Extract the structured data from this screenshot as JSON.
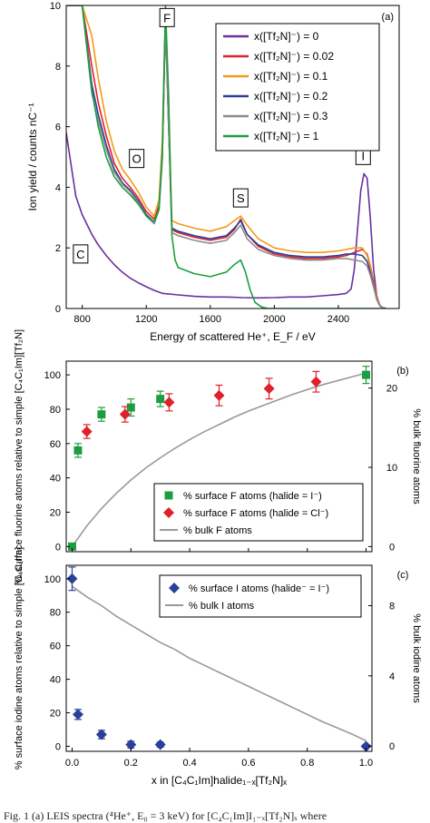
{
  "caption": "Fig. 1 (a) LEIS spectra (⁴He⁺, E₀ = 3 keV) for [C₄C₁Im]I₁₋ₓ[Tf₂N]ₓ where",
  "chart_data": [
    {
      "type": "line",
      "panel_label": "(a)",
      "xlabel": "Energy of scattered He⁺, E_F / eV",
      "ylabel": "Ion yield / counts nC⁻¹",
      "xlim": [
        700,
        2780
      ],
      "ylim": [
        0,
        10
      ],
      "xticks": [
        800,
        1200,
        1600,
        2000,
        2400
      ],
      "yticks": [
        0,
        2,
        4,
        6,
        8,
        10
      ],
      "legend_position": "top-right",
      "peak_labels": [
        {
          "text": "F",
          "x": 1330,
          "y": 9.6
        },
        {
          "text": "O",
          "x": 1140,
          "y": 4.95
        },
        {
          "text": "S",
          "x": 1790,
          "y": 3.65
        },
        {
          "text": "I",
          "x": 2555,
          "y": 5.05
        },
        {
          "text": "C",
          "x": 790,
          "y": 1.8
        }
      ],
      "series": [
        {
          "name": "x([Tf₂N]⁻) = 0",
          "color": "#6a2fa0",
          "x": [
            690,
            700,
            760,
            800,
            860,
            900,
            950,
            1000,
            1050,
            1100,
            1150,
            1200,
            1250,
            1300,
            1400,
            1500,
            1600,
            1700,
            1800,
            1900,
            2000,
            2100,
            2200,
            2300,
            2400,
            2450,
            2480,
            2500,
            2520,
            2540,
            2560,
            2580,
            2600,
            2620,
            2640,
            2660,
            2680,
            2700
          ],
          "y": [
            5.9,
            5.8,
            3.7,
            3.1,
            2.45,
            2.1,
            1.75,
            1.45,
            1.2,
            1.0,
            0.85,
            0.72,
            0.6,
            0.5,
            0.45,
            0.4,
            0.38,
            0.38,
            0.36,
            0.35,
            0.36,
            0.38,
            0.38,
            0.42,
            0.46,
            0.5,
            0.65,
            1.3,
            2.6,
            3.9,
            4.45,
            4.3,
            3.0,
            1.3,
            0.4,
            0.1,
            0.02,
            0.0
          ]
        },
        {
          "name": "x([Tf₂N]⁻) = 0.02",
          "color": "#e0202a",
          "x": [
            690,
            700,
            760,
            800,
            860,
            900,
            950,
            1000,
            1050,
            1100,
            1150,
            1200,
            1250,
            1280,
            1300,
            1320,
            1340,
            1360,
            1400,
            1500,
            1600,
            1700,
            1750,
            1790,
            1830,
            1900,
            2000,
            2100,
            2200,
            2300,
            2400,
            2450,
            2500,
            2550,
            2580,
            2600,
            2620,
            2640,
            2660,
            2680,
            2700
          ],
          "y": [
            10,
            10,
            10,
            10,
            8.0,
            6.8,
            5.7,
            4.8,
            4.3,
            4.0,
            3.65,
            3.2,
            2.95,
            3.4,
            5.0,
            9.5,
            6.0,
            2.6,
            2.5,
            2.35,
            2.25,
            2.35,
            2.6,
            2.95,
            2.45,
            2.05,
            1.8,
            1.7,
            1.65,
            1.65,
            1.7,
            1.75,
            1.85,
            1.95,
            1.8,
            1.4,
            0.9,
            0.4,
            0.1,
            0.02,
            0.0
          ]
        },
        {
          "name": "x([Tf₂N]⁻) = 0.1",
          "color": "#f29a1a",
          "x": [
            690,
            700,
            760,
            800,
            860,
            900,
            950,
            1000,
            1050,
            1100,
            1150,
            1200,
            1250,
            1280,
            1300,
            1320,
            1340,
            1360,
            1400,
            1500,
            1600,
            1700,
            1750,
            1790,
            1830,
            1900,
            2000,
            2100,
            2200,
            2300,
            2400,
            2450,
            2500,
            2550,
            2580,
            2600,
            2620,
            2640,
            2660,
            2680,
            2700
          ],
          "y": [
            10,
            10,
            10,
            10,
            9.0,
            7.6,
            6.2,
            5.2,
            4.6,
            4.25,
            3.85,
            3.35,
            3.05,
            3.6,
            5.5,
            9.8,
            6.5,
            2.9,
            2.8,
            2.65,
            2.55,
            2.7,
            2.9,
            3.05,
            2.75,
            2.3,
            2.0,
            1.9,
            1.85,
            1.85,
            1.9,
            1.95,
            2.0,
            2.0,
            1.75,
            1.35,
            0.85,
            0.35,
            0.1,
            0.02,
            0.0
          ]
        },
        {
          "name": "x([Tf₂N]⁻) = 0.2",
          "color": "#2a3f9a",
          "x": [
            690,
            700,
            760,
            800,
            860,
            900,
            950,
            1000,
            1050,
            1100,
            1150,
            1200,
            1250,
            1280,
            1300,
            1320,
            1340,
            1360,
            1400,
            1500,
            1600,
            1700,
            1750,
            1790,
            1830,
            1900,
            2000,
            2100,
            2200,
            2300,
            2400,
            2450,
            2500,
            2550,
            2580,
            2600,
            2620,
            2640,
            2660,
            2680,
            2700
          ],
          "y": [
            10,
            10,
            10,
            10,
            7.4,
            6.4,
            5.4,
            4.6,
            4.15,
            3.9,
            3.55,
            3.1,
            2.85,
            3.3,
            5.0,
            9.7,
            6.1,
            2.65,
            2.55,
            2.4,
            2.3,
            2.4,
            2.65,
            2.9,
            2.45,
            2.1,
            1.85,
            1.75,
            1.7,
            1.7,
            1.75,
            1.8,
            1.8,
            1.75,
            1.55,
            1.2,
            0.75,
            0.3,
            0.08,
            0.02,
            0.0
          ]
        },
        {
          "name": "x([Tf₂N]⁻) = 0.3",
          "color": "#8c8c8c",
          "x": [
            690,
            700,
            760,
            800,
            860,
            900,
            950,
            1000,
            1050,
            1100,
            1150,
            1200,
            1250,
            1280,
            1300,
            1320,
            1340,
            1360,
            1400,
            1500,
            1600,
            1700,
            1750,
            1790,
            1830,
            1900,
            2000,
            2100,
            2200,
            2300,
            2400,
            2450,
            2500,
            2550,
            2580,
            2600,
            2620,
            2640,
            2660,
            2680,
            2700
          ],
          "y": [
            10,
            10,
            10,
            10,
            7.1,
            6.2,
            5.25,
            4.5,
            4.1,
            3.85,
            3.5,
            3.05,
            2.8,
            3.25,
            4.9,
            9.7,
            6.0,
            2.5,
            2.4,
            2.25,
            2.15,
            2.25,
            2.5,
            2.75,
            2.3,
            1.95,
            1.75,
            1.65,
            1.6,
            1.6,
            1.65,
            1.65,
            1.6,
            1.55,
            1.4,
            1.1,
            0.7,
            0.3,
            0.08,
            0.02,
            0.0
          ]
        },
        {
          "name": "x([Tf₂N]⁻) = 1",
          "color": "#1c9e3e",
          "x": [
            690,
            700,
            760,
            800,
            860,
            900,
            950,
            1000,
            1050,
            1100,
            1150,
            1200,
            1250,
            1280,
            1300,
            1320,
            1340,
            1360,
            1380,
            1400,
            1500,
            1600,
            1700,
            1750,
            1790,
            1820,
            1850,
            1880,
            1920,
            1960,
            2000,
            2100,
            2200,
            2300,
            2400,
            2500,
            2600,
            2700
          ],
          "y": [
            10,
            10,
            10,
            10,
            7.2,
            6.0,
            5.0,
            4.35,
            4.0,
            3.75,
            3.45,
            3.05,
            2.85,
            3.3,
            5.2,
            10.0,
            7.0,
            2.4,
            1.6,
            1.35,
            1.15,
            1.05,
            1.2,
            1.45,
            1.6,
            1.2,
            0.6,
            0.2,
            0.05,
            0.0,
            0.0,
            0.0,
            0.0,
            0.0,
            0.0,
            0.0,
            0.0,
            0.0
          ]
        }
      ]
    },
    {
      "type": "scatter",
      "panel_label": "(b)",
      "xlim": [
        -0.02,
        1.02
      ],
      "ylim": [
        -3,
        108
      ],
      "y2lim": [
        -0.65,
        23.4
      ],
      "ylabel": "% surface fluorine atoms relative to simple [C₄C₁Im][Tf₂N]",
      "y2label": "% bulk fluorine atoms",
      "yticks": [
        0,
        20,
        40,
        60,
        80,
        100
      ],
      "y2ticks": [
        0,
        10,
        20
      ],
      "legend_position": "bottom-right",
      "series": [
        {
          "name": "% surface F atoms (halide = I⁻)",
          "marker": "square",
          "color": "#1c9e3e",
          "x": [
            0.0,
            0.02,
            0.1,
            0.2,
            0.3,
            1.0
          ],
          "y": [
            0,
            56,
            77,
            81,
            86,
            100
          ],
          "err": [
            1.5,
            4,
            4,
            5,
            4.5,
            5
          ]
        },
        {
          "name": "% surface F atoms (halide = Cl⁻)",
          "marker": "diamond",
          "color": "#e0202a",
          "x": [
            0.05,
            0.18,
            0.33,
            0.5,
            0.67,
            0.83
          ],
          "y": [
            67,
            77,
            84,
            88,
            92,
            96
          ],
          "err": [
            4,
            4.5,
            5,
            6,
            6,
            6
          ]
        },
        {
          "name": "% bulk F atoms",
          "line": true,
          "color": "#999999",
          "x": [
            0.0,
            0.05,
            0.1,
            0.15,
            0.2,
            0.25,
            0.3,
            0.35,
            0.4,
            0.45,
            0.5,
            0.55,
            0.6,
            0.65,
            0.7,
            0.75,
            0.8,
            0.85,
            0.9,
            0.95,
            1.0
          ],
          "y": [
            0.0,
            2.6,
            4.8,
            6.7,
            8.4,
            9.9,
            11.2,
            12.4,
            13.5,
            14.5,
            15.4,
            16.3,
            17.1,
            17.8,
            18.5,
            19.2,
            19.8,
            20.4,
            20.9,
            21.4,
            21.9
          ]
        }
      ]
    },
    {
      "type": "scatter",
      "panel_label": "(c)",
      "xlim": [
        -0.02,
        1.02
      ],
      "ylim": [
        -3,
        108
      ],
      "y2lim": [
        -0.3,
        10.3
      ],
      "xlabel": "x in [C₄C₁Im]halide₁₋ₓ[Tf₂N]ₓ",
      "ylabel": "% surface iodine atoms relative to simple [C₄C₁Im]",
      "y2label": "% bulk iodine atoms",
      "xticks": [
        0.0,
        0.2,
        0.4,
        0.6,
        0.8,
        1.0
      ],
      "yticks": [
        0,
        20,
        40,
        60,
        80,
        100
      ],
      "y2ticks": [
        0,
        4,
        8
      ],
      "legend_position": "top-right",
      "series": [
        {
          "name": "% surface I atoms (halide⁻ = I⁻)",
          "marker": "diamond",
          "color": "#2a3f9a",
          "x": [
            0.0,
            0.02,
            0.1,
            0.2,
            0.3,
            1.0
          ],
          "y": [
            100,
            19,
            7,
            1,
            1,
            0
          ],
          "err": [
            7,
            3,
            2.5,
            2,
            1.5,
            1
          ]
        },
        {
          "name": "% bulk I atoms",
          "line": true,
          "color": "#999999",
          "x": [
            0.0,
            0.05,
            0.1,
            0.15,
            0.2,
            0.25,
            0.3,
            0.35,
            0.4,
            0.45,
            0.5,
            0.55,
            0.6,
            0.65,
            0.7,
            0.75,
            0.8,
            0.85,
            0.9,
            0.95,
            1.0
          ],
          "y": [
            9.1,
            8.5,
            8.0,
            7.4,
            6.9,
            6.4,
            5.9,
            5.5,
            5.0,
            4.6,
            4.2,
            3.8,
            3.4,
            3.0,
            2.6,
            2.2,
            1.8,
            1.4,
            1.05,
            0.7,
            0.3
          ]
        }
      ]
    }
  ]
}
